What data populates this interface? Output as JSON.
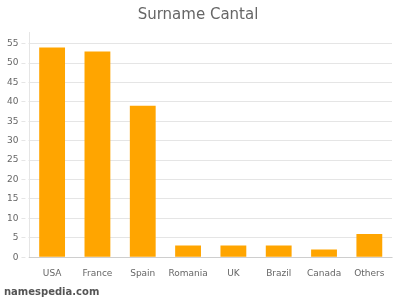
{
  "chart_data": {
    "type": "bar",
    "title": "Surname Cantal",
    "categories": [
      "USA",
      "France",
      "Spain",
      "Romania",
      "UK",
      "Brazil",
      "Canada",
      "Others"
    ],
    "values": [
      54,
      53,
      39,
      3,
      3,
      3,
      2,
      6
    ],
    "color": "#FFA500",
    "ylim": [
      0,
      58
    ],
    "yticks": [
      0,
      5,
      10,
      15,
      20,
      25,
      30,
      35,
      40,
      45,
      50,
      55
    ],
    "grid": true,
    "annotations": [
      "namespedia.com"
    ]
  }
}
